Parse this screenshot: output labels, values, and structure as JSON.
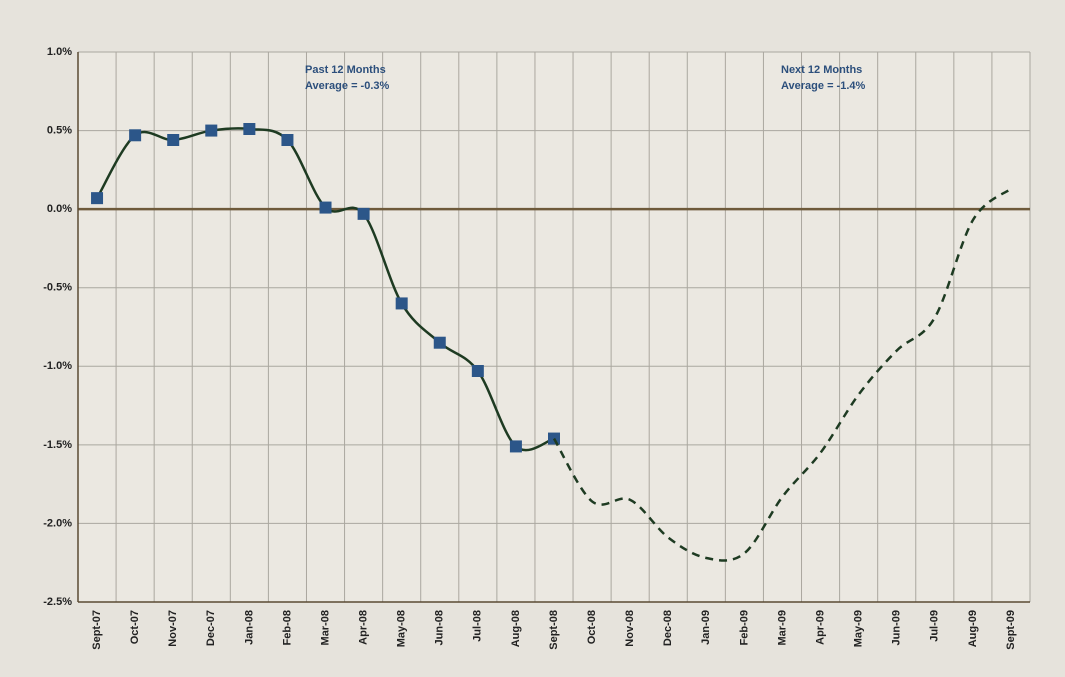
{
  "chart_data": {
    "type": "line",
    "categories": [
      "Sept-07",
      "Oct-07",
      "Nov-07",
      "Dec-07",
      "Jan-08",
      "Feb-08",
      "Mar-08",
      "Apr-08",
      "May-08",
      "Jun-08",
      "Jul-08",
      "Aug-08",
      "Sept-08",
      "Oct-08",
      "Nov-08",
      "Dec-08",
      "Jan-09",
      "Feb-09",
      "Mar-09",
      "Apr-09",
      "May-09",
      "Jun-09",
      "Jul-09",
      "Aug-09",
      "Sept-09"
    ],
    "series": [
      {
        "color": "#1e3b22",
        "line_style": "solid",
        "marker": "square",
        "marker_color": "#2c5689",
        "values": [
          0.07,
          0.47,
          0.44,
          0.5,
          0.51,
          0.44,
          0.01,
          -0.03,
          -0.6,
          -0.85,
          -1.03,
          -1.51,
          -1.46,
          null,
          null,
          null,
          null,
          null,
          null,
          null,
          null,
          null,
          null,
          null,
          null
        ]
      },
      {
        "color": "#1e3b22",
        "line_style": "dashed",
        "marker": "none",
        "values": [
          null,
          null,
          null,
          null,
          null,
          null,
          null,
          null,
          null,
          null,
          null,
          null,
          -1.46,
          -1.86,
          -1.85,
          -2.09,
          -2.22,
          -2.19,
          -1.83,
          -1.55,
          -1.18,
          -0.9,
          -0.69,
          -0.07,
          0.13
        ]
      }
    ],
    "ylim": [
      -2.5,
      1
    ],
    "yticks": [
      {
        "value": -2.5,
        "label": "-2.5%"
      },
      {
        "value": -2,
        "label": "-2.0%"
      },
      {
        "value": -1.5,
        "label": "-1.5%"
      },
      {
        "value": -1,
        "label": "-1.0%"
      },
      {
        "value": -0.5,
        "label": "-0.5%"
      },
      {
        "value": 0,
        "label": "0.0%"
      },
      {
        "value": 0.5,
        "label": "0.5%"
      },
      {
        "value": 1,
        "label": "1.0%"
      }
    ],
    "grid": true,
    "annotations": [
      [
        "Past 12 Months",
        "Average = -0.3%"
      ],
      [
        "Next 12 Months",
        "Average = -1.4%"
      ]
    ]
  }
}
